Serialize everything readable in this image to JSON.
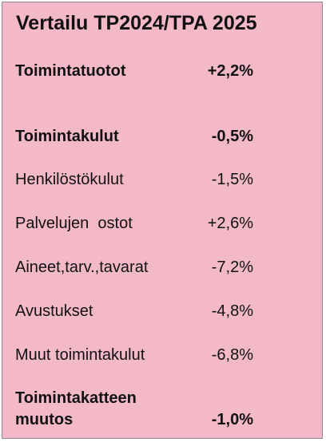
{
  "title": "Vertailu TP2024/TPA 2025",
  "rows": [
    {
      "label": "Toimintatuotot",
      "value": "+2,2%",
      "bold": true
    },
    {
      "label": "Toimintakulut",
      "value": "-0,5%",
      "bold": true
    },
    {
      "label": "Henkilöstökulut",
      "value": "-1,5%",
      "bold": false
    },
    {
      "label": "Palvelujen  ostot",
      "value": "+2,6%",
      "bold": false
    },
    {
      "label": "Aineet,tarv.,tavarat",
      "value": "-7,2%",
      "bold": false
    },
    {
      "label": "Avustukset",
      "value": "-4,8%",
      "bold": false
    },
    {
      "label": "Muut toimintakulut",
      "value": "-6,8%",
      "bold": false
    }
  ],
  "final_row": {
    "label_line1": "Toimintakatteen",
    "label_line2": "muutos",
    "value": "-1,0%"
  }
}
